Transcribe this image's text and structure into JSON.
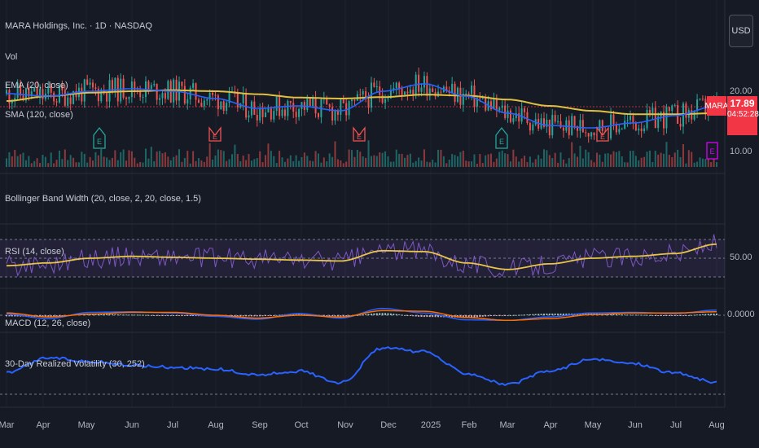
{
  "header": {
    "symbol_title": "MARA Holdings, Inc. · 1D · NASDAQ",
    "currency": "USD"
  },
  "indicators": {
    "vol": "Vol",
    "ema": "EMA (20, close)",
    "sma": "SMA (120, close)",
    "bbw": "Bollinger Band Width (20, close, 2, 20, close, 1.5)",
    "rsi": "RSI (14, close)",
    "macd": "MACD (12, 26, close)",
    "rv": "30-Day Realized Volatility (30, 252)"
  },
  "price_tag": {
    "ticker": "MARA",
    "price": "17.89",
    "countdown": "04:52:28"
  },
  "axis_values": {
    "price_top": "20.00",
    "price_bottom": "10.00",
    "rsi_mid": "50.00",
    "macd_zero": "0.0000"
  },
  "colors": {
    "background": "#161a25",
    "ema": "#2962ff",
    "sma": "#e0c040",
    "rsi": "#7e57c2",
    "rsi_ma": "#e8c547",
    "macd": "#2962ff",
    "signal": "#ff6d00",
    "volatility": "#2962ff",
    "up": "#26a69a",
    "down": "#ef5350"
  },
  "chart_data": {
    "type": "line",
    "x_ticks": [
      "Mar",
      "Apr",
      "May",
      "Jun",
      "Jul",
      "Aug",
      "Sep",
      "Oct",
      "Nov",
      "Dec",
      "2025",
      "Feb",
      "Mar",
      "Apr",
      "May",
      "Jun",
      "Jul",
      "Aug"
    ],
    "price": {
      "last": 17.89,
      "ema20": [
        20.0,
        19.5,
        20.5,
        21.0,
        20.5,
        19.0,
        17.0,
        17.5,
        16.5,
        20.5,
        22.0,
        19.5,
        16.0,
        13.5,
        13.0,
        14.0,
        15.5,
        17.5
      ],
      "sma120": [
        18.5,
        19.5,
        20.2,
        20.5,
        20.7,
        20.5,
        19.9,
        19.2,
        19.0,
        19.3,
        19.8,
        19.6,
        18.8,
        17.5,
        16.5,
        15.8,
        15.8,
        16.0
      ]
    },
    "rsi": {
      "levels": [
        70,
        50,
        30
      ],
      "rsi_ma": [
        42,
        45,
        50,
        52,
        51,
        50,
        49,
        48,
        47,
        58,
        57,
        45,
        38,
        44,
        50,
        52,
        55,
        65
      ]
    },
    "macd": {
      "zero": 0,
      "macd_line": [
        0.2,
        -0.6,
        0.5,
        0.6,
        0.4,
        -0.2,
        -0.7,
        0.3,
        -0.5,
        1.2,
        0.4,
        -0.8,
        -0.9,
        -0.3,
        0.4,
        0.5,
        0.3,
        0.9
      ],
      "signal_line": [
        0.4,
        -0.3,
        0.2,
        0.5,
        0.5,
        0.0,
        -0.5,
        0.0,
        -0.3,
        0.8,
        0.7,
        -0.4,
        -0.9,
        -0.6,
        0.1,
        0.4,
        0.4,
        0.6
      ]
    },
    "realized_volatility": {
      "values": [
        72,
        88,
        84,
        80,
        78,
        76,
        70,
        74,
        62,
        98,
        94,
        72,
        60,
        74,
        86,
        82,
        72,
        62
      ]
    }
  }
}
